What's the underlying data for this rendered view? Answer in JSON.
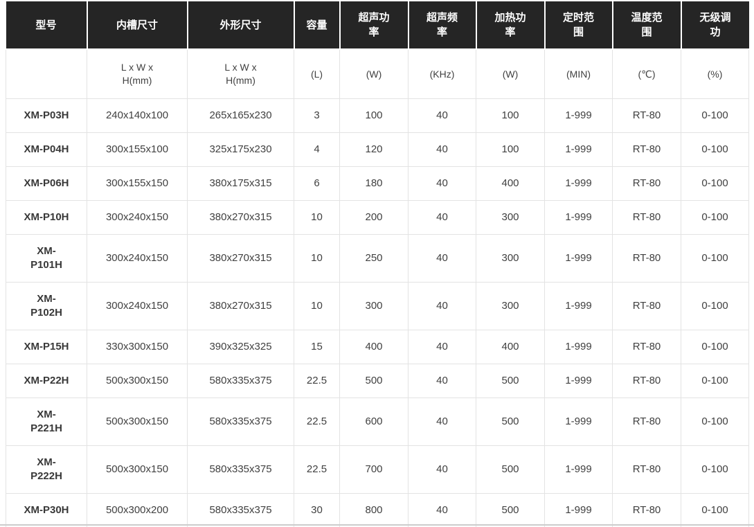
{
  "table": {
    "columns": [
      {
        "label": "型号",
        "unit": ""
      },
      {
        "label": "内槽尺寸",
        "unit": "L x W x\nH(mm)"
      },
      {
        "label": "外形尺寸",
        "unit": "L x W x\nH(mm)"
      },
      {
        "label": "容量",
        "unit": "(L)"
      },
      {
        "label": "超声功\n率",
        "unit": "(W)"
      },
      {
        "label": "超声频\n率",
        "unit": "(KHz)"
      },
      {
        "label": "加热功\n率",
        "unit": "(W)"
      },
      {
        "label": "定时范\n围",
        "unit": "(MIN)"
      },
      {
        "label": "温度范\n围",
        "unit": "(℃)"
      },
      {
        "label": "无级调\n功",
        "unit": "(%)"
      }
    ],
    "rows": [
      {
        "model": "XM-P03H",
        "values": [
          "240x140x100",
          "265x165x230",
          "3",
          "100",
          "40",
          "100",
          "1-999",
          "RT-80",
          "0-100"
        ]
      },
      {
        "model": "XM-P04H",
        "values": [
          "300x155x100",
          "325x175x230",
          "4",
          "120",
          "40",
          "100",
          "1-999",
          "RT-80",
          "0-100"
        ]
      },
      {
        "model": "XM-P06H",
        "values": [
          "300x155x150",
          "380x175x315",
          "6",
          "180",
          "40",
          "400",
          "1-999",
          "RT-80",
          "0-100"
        ]
      },
      {
        "model": "XM-P10H",
        "values": [
          "300x240x150",
          "380x270x315",
          "10",
          "200",
          "40",
          "300",
          "1-999",
          "RT-80",
          "0-100"
        ]
      },
      {
        "model": "XM-P101H",
        "values": [
          "300x240x150",
          "380x270x315",
          "10",
          "250",
          "40",
          "300",
          "1-999",
          "RT-80",
          "0-100"
        ]
      },
      {
        "model": "XM-P102H",
        "values": [
          "300x240x150",
          "380x270x315",
          "10",
          "300",
          "40",
          "300",
          "1-999",
          "RT-80",
          "0-100"
        ]
      },
      {
        "model": "XM-P15H",
        "values": [
          "330x300x150",
          "390x325x325",
          "15",
          "400",
          "40",
          "400",
          "1-999",
          "RT-80",
          "0-100"
        ]
      },
      {
        "model": "XM-P22H",
        "values": [
          "500x300x150",
          "580x335x375",
          "22.5",
          "500",
          "40",
          "500",
          "1-999",
          "RT-80",
          "0-100"
        ]
      },
      {
        "model": "XM-P221H",
        "values": [
          "500x300x150",
          "580x335x375",
          "22.5",
          "600",
          "40",
          "500",
          "1-999",
          "RT-80",
          "0-100"
        ]
      },
      {
        "model": "XM-P222H",
        "values": [
          "500x300x150",
          "580x335x375",
          "22.5",
          "700",
          "40",
          "500",
          "1-999",
          "RT-80",
          "0-100"
        ]
      },
      {
        "model": "XM-P30H",
        "values": [
          "500x300x200",
          "580x335x375",
          "30",
          "800",
          "40",
          "500",
          "1-999",
          "RT-80",
          "0-100"
        ]
      }
    ]
  },
  "colors": {
    "header_bg": "#252525",
    "header_text": "#ffffff",
    "body_text": "#404040",
    "border": "#e3e3e3",
    "bottom_rule": "#cccccc"
  },
  "chart_data": {
    "type": "table",
    "title": "",
    "columns": [
      "型号",
      "内槽尺寸 L x W x H(mm)",
      "外形尺寸 L x W x H(mm)",
      "容量 (L)",
      "超声功率 (W)",
      "超声频率 (KHz)",
      "加热功率 (W)",
      "定时范围 (MIN)",
      "温度范围 (℃)",
      "无级调功 (%)"
    ],
    "rows": [
      [
        "XM-P03H",
        "240x140x100",
        "265x165x230",
        "3",
        "100",
        "40",
        "100",
        "1-999",
        "RT-80",
        "0-100"
      ],
      [
        "XM-P04H",
        "300x155x100",
        "325x175x230",
        "4",
        "120",
        "40",
        "100",
        "1-999",
        "RT-80",
        "0-100"
      ],
      [
        "XM-P06H",
        "300x155x150",
        "380x175x315",
        "6",
        "180",
        "40",
        "400",
        "1-999",
        "RT-80",
        "0-100"
      ],
      [
        "XM-P10H",
        "300x240x150",
        "380x270x315",
        "10",
        "200",
        "40",
        "300",
        "1-999",
        "RT-80",
        "0-100"
      ],
      [
        "XM-P101H",
        "300x240x150",
        "380x270x315",
        "10",
        "250",
        "40",
        "300",
        "1-999",
        "RT-80",
        "0-100"
      ],
      [
        "XM-P102H",
        "300x240x150",
        "380x270x315",
        "10",
        "300",
        "40",
        "300",
        "1-999",
        "RT-80",
        "0-100"
      ],
      [
        "XM-P15H",
        "330x300x150",
        "390x325x325",
        "15",
        "400",
        "40",
        "400",
        "1-999",
        "RT-80",
        "0-100"
      ],
      [
        "XM-P22H",
        "500x300x150",
        "580x335x375",
        "22.5",
        "500",
        "40",
        "500",
        "1-999",
        "RT-80",
        "0-100"
      ],
      [
        "XM-P221H",
        "500x300x150",
        "580x335x375",
        "22.5",
        "600",
        "40",
        "500",
        "1-999",
        "RT-80",
        "0-100"
      ],
      [
        "XM-P222H",
        "500x300x150",
        "580x335x375",
        "22.5",
        "700",
        "40",
        "500",
        "1-999",
        "RT-80",
        "0-100"
      ],
      [
        "XM-P30H",
        "500x300x200",
        "580x335x375",
        "30",
        "800",
        "40",
        "500",
        "1-999",
        "RT-80",
        "0-100"
      ]
    ]
  }
}
